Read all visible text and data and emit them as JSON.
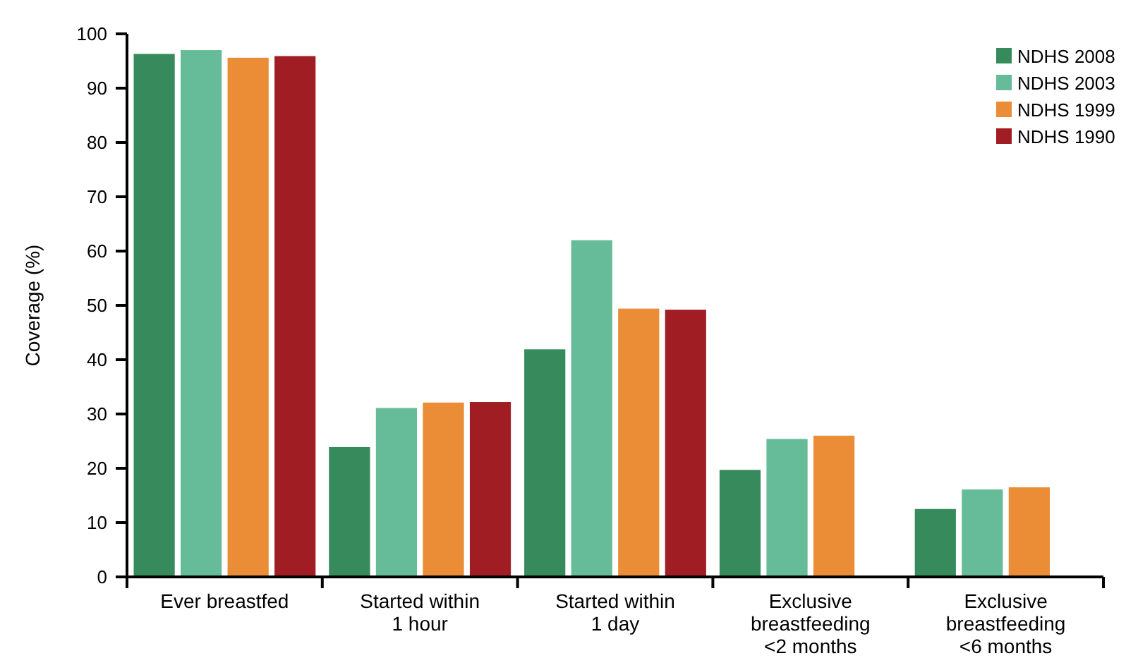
{
  "chart_data": {
    "type": "bar",
    "ylabel": "Coverage (%)",
    "categories": [
      "Ever breastfed",
      "Started within 1 hour",
      "Started within 1 day",
      "Exclusive breastfeeding <2 months",
      "Exclusive breastfeeding <6 months"
    ],
    "series": [
      {
        "name": "NDHS 2008",
        "color": "#368a5c",
        "values": [
          96.5,
          24.1,
          42.1,
          19.9,
          12.7
        ]
      },
      {
        "name": "NDHS 2003",
        "color": "#66bc98",
        "values": [
          97.2,
          31.3,
          62.2,
          25.6,
          16.3
        ]
      },
      {
        "name": "NDHS 1999",
        "color": "#eb8c37",
        "values": [
          95.8,
          32.3,
          49.6,
          26.2,
          16.7
        ]
      },
      {
        "name": "NDHS 1990",
        "color": "#a01e23",
        "values": [
          96.1,
          32.4,
          49.4,
          null,
          null
        ]
      }
    ],
    "ylim": [
      0,
      100
    ],
    "yticks": [
      0,
      10,
      20,
      30,
      40,
      50,
      60,
      70,
      80,
      90,
      100
    ],
    "grid": false,
    "legend": "top right"
  }
}
